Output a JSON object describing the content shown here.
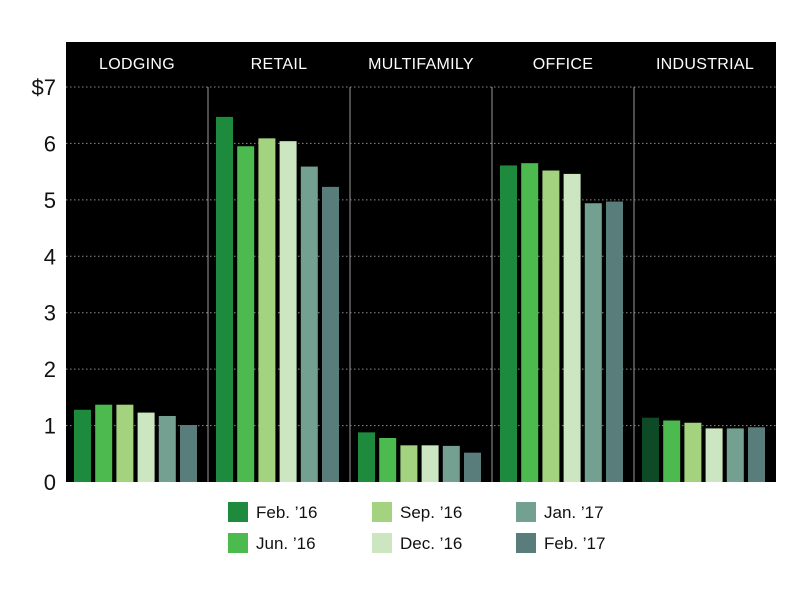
{
  "chart_data": {
    "type": "bar",
    "categories": [
      "LODGING",
      "RETAIL",
      "MULTIFAMILY",
      "OFFICE",
      "INDUSTRIAL"
    ],
    "series": [
      {
        "name": "Feb. ’16",
        "color": "#1e8a3e",
        "values": [
          1.28,
          6.47,
          0.88,
          5.61,
          1.14
        ]
      },
      {
        "name": "Jun. ’16",
        "color": "#4cba4f",
        "values": [
          1.37,
          5.95,
          0.78,
          5.65,
          1.09
        ]
      },
      {
        "name": "Sep. ’16",
        "color": "#a3d37f",
        "values": [
          1.37,
          6.09,
          0.65,
          5.52,
          1.05
        ]
      },
      {
        "name": "Dec. ’16",
        "color": "#cbe6c0",
        "values": [
          1.23,
          6.04,
          0.65,
          5.46,
          0.95
        ]
      },
      {
        "name": "Jan. ’17",
        "color": "#73a090",
        "values": [
          1.17,
          5.59,
          0.64,
          4.94,
          0.95
        ]
      },
      {
        "name": "Feb. ’17",
        "color": "#587d7b",
        "values": [
          1.01,
          5.23,
          0.52,
          4.97,
          0.97
        ]
      }
    ],
    "industrial_first_bar_color": "#0f4a26",
    "y_ticks": [
      {
        "value": 0,
        "label": "0"
      },
      {
        "value": 1,
        "label": "1"
      },
      {
        "value": 2,
        "label": "2"
      },
      {
        "value": 3,
        "label": "3"
      },
      {
        "value": 4,
        "label": "4"
      },
      {
        "value": 5,
        "label": "5"
      },
      {
        "value": 6,
        "label": "6"
      },
      {
        "value": 7,
        "label": "$7"
      }
    ],
    "ylim": [
      0,
      7
    ],
    "grid": true,
    "legend_position": "bottom",
    "colors": {
      "background": "#000000",
      "grid": "#8c8c8c",
      "separator": "#9a9a9a"
    }
  }
}
